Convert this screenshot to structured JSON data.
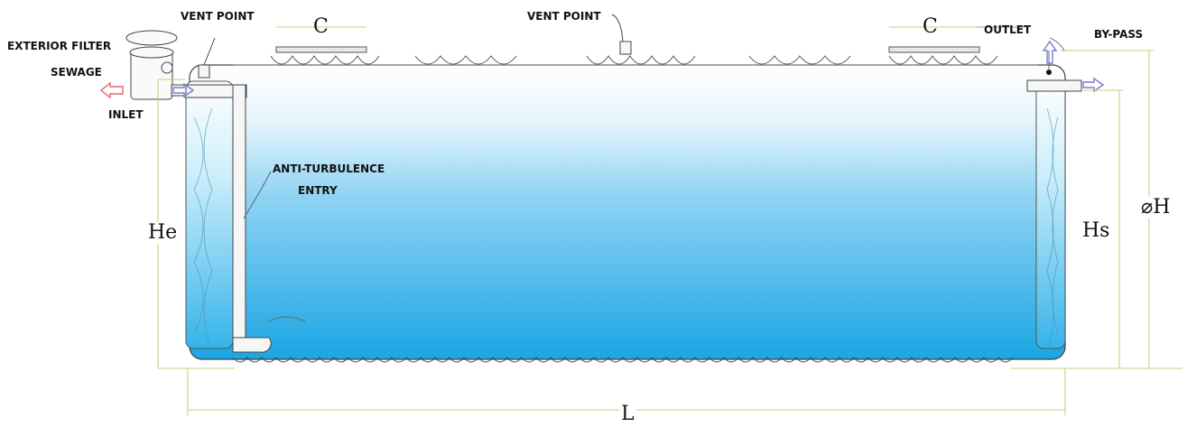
{
  "labels": {
    "vent_point_left": "VENT POINT",
    "vent_point_center": "VENT POINT",
    "exterior_filter": "EXTERIOR FILTER",
    "sewage": "SEWAGE",
    "inlet": "INLET",
    "outlet": "OUTLET",
    "by_pass": "BY-PASS",
    "anti_turbulence_line1": "ANTI-TURBULENCE",
    "anti_turbulence_line2": "ENTRY"
  },
  "dimensions": {
    "c_left": "C",
    "c_right": "C",
    "he": "He",
    "hs": "Hs",
    "phi_h": "⌀H",
    "l": "L"
  },
  "colors": {
    "water_top": "#ffffff",
    "water_bottom": "#1aa6e3",
    "dimension_line": "#c9cf7a",
    "outline": "#333333",
    "arrow_left": "#e06a6a",
    "arrow_right": "#7a7ad8"
  }
}
